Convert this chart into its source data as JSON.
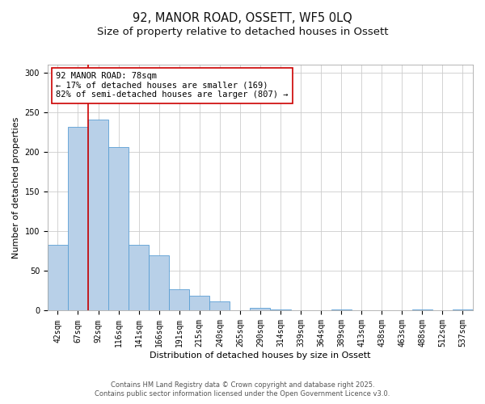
{
  "title": "92, MANOR ROAD, OSSETT, WF5 0LQ",
  "subtitle": "Size of property relative to detached houses in Ossett",
  "xlabel": "Distribution of detached houses by size in Ossett",
  "ylabel": "Number of detached properties",
  "bar_labels": [
    "42sqm",
    "67sqm",
    "92sqm",
    "116sqm",
    "141sqm",
    "166sqm",
    "191sqm",
    "215sqm",
    "240sqm",
    "265sqm",
    "290sqm",
    "314sqm",
    "339sqm",
    "364sqm",
    "389sqm",
    "413sqm",
    "438sqm",
    "463sqm",
    "488sqm",
    "512sqm",
    "537sqm"
  ],
  "bar_values": [
    83,
    232,
    241,
    206,
    83,
    70,
    27,
    19,
    12,
    0,
    4,
    1,
    0,
    0,
    2,
    0,
    0,
    0,
    1,
    0,
    2
  ],
  "bar_color": "#b8d0e8",
  "bar_edge_color": "#5a9fd4",
  "vline_x": 1.5,
  "vline_color": "#cc0000",
  "annotation_text": "92 MANOR ROAD: 78sqm\n← 17% of detached houses are smaller (169)\n82% of semi-detached houses are larger (807) →",
  "annotation_box_color": "#ffffff",
  "annotation_box_edge": "#cc0000",
  "ylim": [
    0,
    310
  ],
  "yticks": [
    0,
    50,
    100,
    150,
    200,
    250,
    300
  ],
  "background_color": "#ffffff",
  "grid_color": "#cccccc",
  "footer1": "Contains HM Land Registry data © Crown copyright and database right 2025.",
  "footer2": "Contains public sector information licensed under the Open Government Licence v3.0.",
  "title_fontsize": 10.5,
  "subtitle_fontsize": 9.5,
  "label_fontsize": 8,
  "tick_fontsize": 7,
  "annotation_fontsize": 7.5,
  "footer_fontsize": 6
}
